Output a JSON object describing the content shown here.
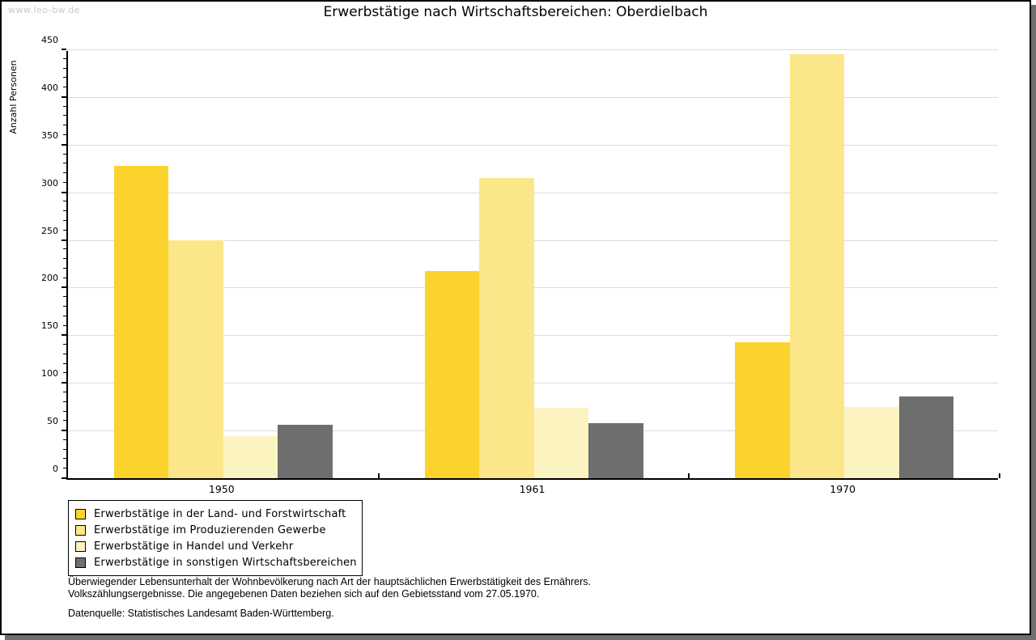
{
  "page": {
    "watermark": "www.leo-bw.de",
    "title": "Erwerbstätige nach Wirtschaftsbereichen: Oberdielbach"
  },
  "chart_data": {
    "type": "bar",
    "title": "Erwerbstätige nach Wirtschaftsbereichen: Oberdielbach",
    "categories": [
      "1950",
      "1961",
      "1970"
    ],
    "series": [
      {
        "name": "Erwerbstätige in der Land- und Forstwirtschaft",
        "color": "#FCD32D",
        "values": [
          328,
          217,
          143
        ]
      },
      {
        "name": "Erwerbstätige im Produzierenden Gewerbe",
        "color": "#FBE789",
        "values": [
          250,
          315,
          445
        ]
      },
      {
        "name": "Erwerbstätige in Handel und Verkehr",
        "color": "#FCF4C0",
        "values": [
          44,
          74,
          75
        ]
      },
      {
        "name": "Erwerbstätige in sonstigen Wirtschaftsbereichen",
        "color": "#6E6E6E",
        "values": [
          56,
          58,
          86
        ]
      }
    ],
    "xlabel": "",
    "ylabel": "Anzahl Personen",
    "ylim": [
      0,
      450
    ],
    "ytick_step": 50,
    "yminor_step": 10,
    "grid": true,
    "legend_position": "bottom-left",
    "gridline_color": "#dcdcdc"
  },
  "footer": {
    "line1": "Überwiegender Lebensunterhalt der Wohnbevölkerung nach Art der hauptsächlichen Erwerbstätigkeit des Ernährers.",
    "line2": "Volkszählungsergebnisse. Die angegebenen Daten beziehen sich auf den Gebietsstand vom 27.05.1970.",
    "source": "Datenquelle: Statistisches Landesamt Baden-Württemberg."
  }
}
